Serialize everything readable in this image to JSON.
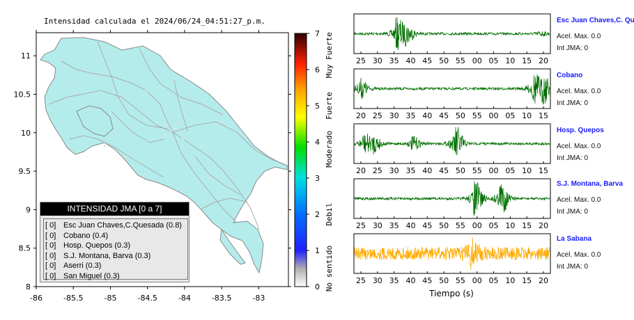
{
  "map": {
    "title": "Intensidad calculada el 2024/06/24_04:51:27_p.m.",
    "x_ticks": [
      "-86",
      "-85.5",
      "-85",
      "-84.5",
      "-84",
      "-83.5",
      "-83"
    ],
    "y_ticks": [
      "11",
      "10.5",
      "10",
      "9.5",
      "9",
      "8.5",
      "8"
    ],
    "xlim": [
      -86,
      -82.6
    ],
    "ylim": [
      8,
      11.3
    ],
    "land_color": "#b4ecec"
  },
  "colorbar": {
    "ticks": [
      "0",
      "1",
      "2",
      "3",
      "4",
      "5",
      "6",
      "7"
    ],
    "labels": [
      "No sentido",
      "Debil",
      "Moderado",
      "Fuerte",
      "Muy Fuerte"
    ]
  },
  "legend": {
    "title": "INTENSIDAD JMA [0 a 7]",
    "items": [
      {
        "bracket": "[ 0]",
        "label": "Esc Juan Chaves,C.Quesada (0.8)"
      },
      {
        "bracket": "[ 0]",
        "label": "Cobano (0.4)"
      },
      {
        "bracket": "[ 0]",
        "label": "Hosp. Quepos (0.3)"
      },
      {
        "bracket": "[ 0]",
        "label": "S.J. Montana, Barva (0.3)"
      },
      {
        "bracket": "[ 0]",
        "label": "Aserri (0.3)"
      },
      {
        "bracket": "[ 0]",
        "label": "San Miguel (0.3)"
      }
    ]
  },
  "stations": [
    {
      "name": "Esc Juan Chaves,C. Qu",
      "acel": "Acel. Max. 0.0",
      "int": "Int JMA: 0",
      "color": "#007000",
      "ticks": [
        "25",
        "30",
        "35",
        "40",
        "45",
        "50",
        "55",
        "00",
        "05",
        "10",
        "15",
        "20"
      ],
      "bursts": [
        [
          0.22,
          0.85
        ],
        [
          0.27,
          0.45
        ],
        [
          0.95,
          0.1
        ]
      ]
    },
    {
      "name": "Cobano",
      "acel": "Acel. Max. 0.0",
      "int": "Int JMA: 0",
      "color": "#007000",
      "ticks": [
        "20",
        "25",
        "30",
        "35",
        "40",
        "45",
        "50",
        "55",
        "00",
        "05",
        "10",
        "15"
      ],
      "bursts": [
        [
          0.03,
          0.55
        ],
        [
          0.92,
          0.8
        ],
        [
          0.97,
          0.7
        ]
      ]
    },
    {
      "name": "Hosp. Quepos",
      "acel": "Acel. Max. 0.0",
      "int": "Int JMA: 0",
      "color": "#007000",
      "ticks": [
        "20",
        "25",
        "30",
        "35",
        "40",
        "45",
        "50",
        "55",
        "00",
        "05",
        "10",
        "15"
      ],
      "bursts": [
        [
          0.05,
          0.5
        ],
        [
          0.1,
          0.45
        ],
        [
          0.52,
          0.95
        ],
        [
          0.3,
          0.35
        ]
      ]
    },
    {
      "name": "S.J. Montana, Barva",
      "acel": "Acel. Max. 0.0",
      "int": "Int JMA: 0",
      "color": "#007000",
      "ticks": [
        "25",
        "30",
        "35",
        "40",
        "45",
        "50",
        "55",
        "00",
        "05",
        "10",
        "15",
        "20"
      ],
      "bursts": [
        [
          0.62,
          0.95
        ],
        [
          0.75,
          0.9
        ]
      ]
    },
    {
      "name": "La Sabana",
      "acel": "Acel. Max. 0.0",
      "int": "Int JMA: 0",
      "color": "#ffaa00",
      "ticks": [
        "25",
        "30",
        "35",
        "40",
        "45",
        "50",
        "55",
        "00",
        "05",
        "10",
        "15",
        "20"
      ],
      "bursts": [
        [
          0.6,
          0.8
        ]
      ]
    }
  ],
  "xlabel": "Tiempo (s)"
}
